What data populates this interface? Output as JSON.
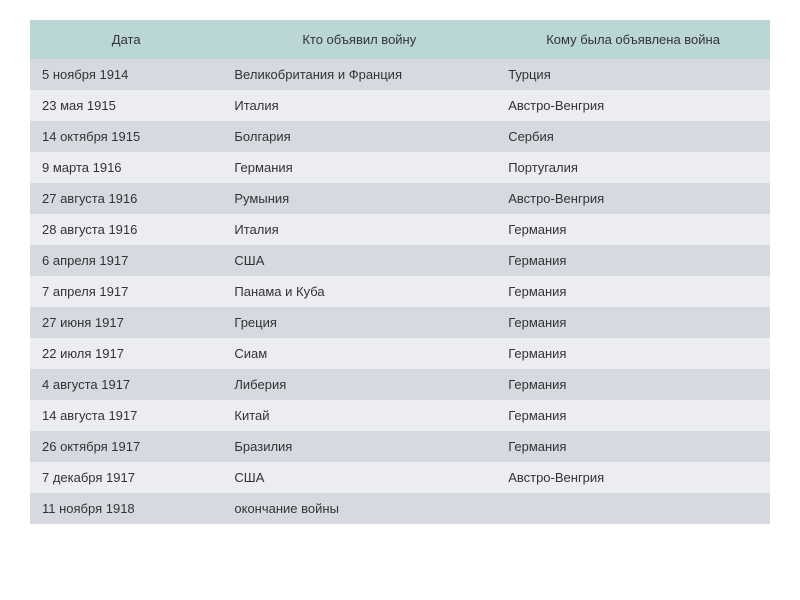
{
  "table": {
    "type": "table",
    "header_bg": "#bad6d6",
    "row_odd_bg": "#d6d9e0",
    "row_even_bg": "#ecedf1",
    "text_color": "#333333",
    "font_size": 13,
    "columns": [
      {
        "label": "Дата",
        "width": "26%",
        "align": "left"
      },
      {
        "label": "Кто объявил войну",
        "width": "37%",
        "align": "left"
      },
      {
        "label": "Кому была объявлена война",
        "width": "37%",
        "align": "left"
      }
    ],
    "rows": [
      [
        "5 ноября 1914",
        "Великобритания и Франция",
        "Турция"
      ],
      [
        "23 мая 1915",
        "Италия",
        "Австро-Венгрия"
      ],
      [
        "14 октября 1915",
        "Болгария",
        "Сербия"
      ],
      [
        "9 марта 1916",
        "Германия",
        "Португалия"
      ],
      [
        "27 августа 1916",
        "Румыния",
        "Австро-Венгрия"
      ],
      [
        "28 августа 1916",
        "Италия",
        "Германия"
      ],
      [
        "6 апреля 1917",
        "США",
        "Германия"
      ],
      [
        "7 апреля 1917",
        "Панама и Куба",
        "Германия"
      ],
      [
        "27 июня 1917",
        "Греция",
        "Германия"
      ],
      [
        "22 июля 1917",
        "Сиам",
        "Германия"
      ],
      [
        "4 августа 1917",
        "Либерия",
        "Германия"
      ],
      [
        "14 августа 1917",
        "Китай",
        "Германия"
      ],
      [
        "26 октября 1917",
        "Бразилия",
        "Германия"
      ],
      [
        "7 декабря 1917",
        "США",
        "Австро-Венгрия"
      ],
      [
        "11 ноября 1918",
        "окончание войны",
        ""
      ]
    ]
  }
}
